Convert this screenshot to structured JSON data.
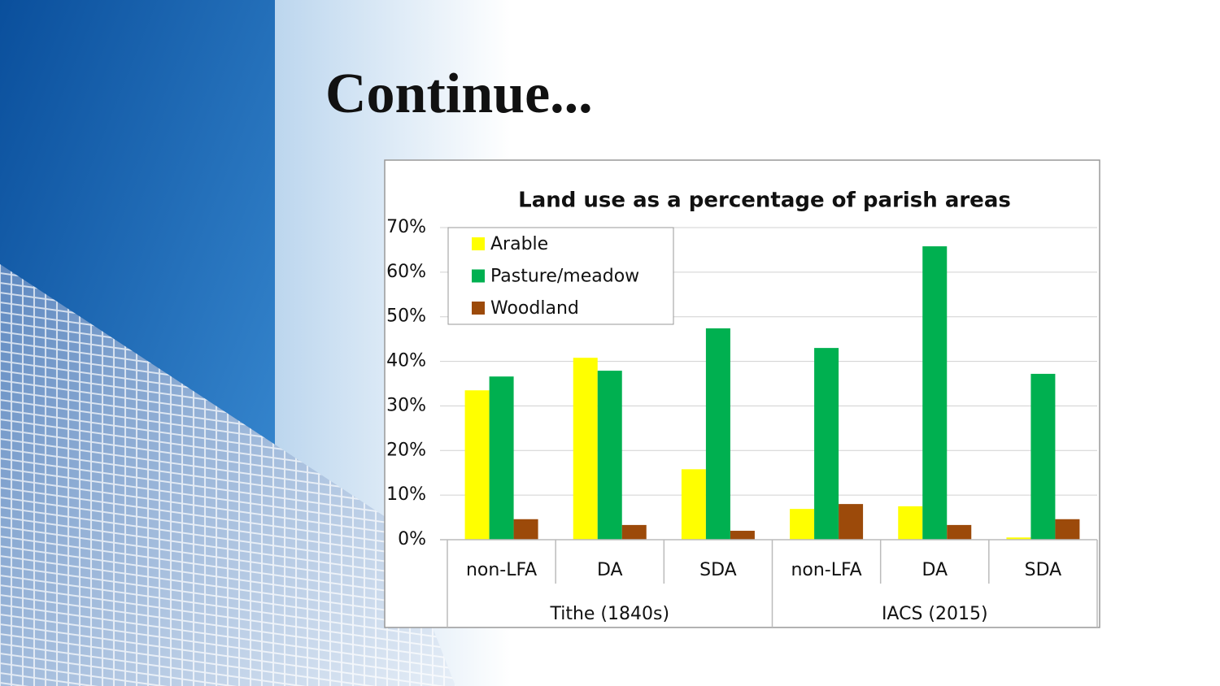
{
  "slide": {
    "title": "Continue..."
  },
  "chart_data": {
    "type": "bar",
    "title": "Land use as a percentage of parish areas",
    "groups": [
      {
        "label": "Tithe (1840s)",
        "categories": [
          "non-LFA",
          "DA",
          "SDA"
        ]
      },
      {
        "label": "IACS (2015)",
        "categories": [
          "non-LFA",
          "DA",
          "SDA"
        ]
      }
    ],
    "series": [
      {
        "name": "Arable",
        "color": "#ffff00",
        "values": [
          33.5,
          40.8,
          15.8,
          6.9,
          7.5,
          0.5
        ]
      },
      {
        "name": "Pasture/meadow",
        "color": "#00b050",
        "values": [
          36.6,
          37.9,
          47.4,
          43.0,
          65.8,
          37.2
        ]
      },
      {
        "name": "Woodland",
        "color": "#9c4a0a",
        "values": [
          4.6,
          3.3,
          2.0,
          8.0,
          3.3,
          4.6
        ]
      }
    ],
    "ylim": [
      0,
      70
    ],
    "yticks": [
      {
        "value": 0,
        "label": "0%"
      },
      {
        "value": 10,
        "label": "10%"
      },
      {
        "value": 20,
        "label": "20%"
      },
      {
        "value": 30,
        "label": "30%"
      },
      {
        "value": 40,
        "label": "40%"
      },
      {
        "value": 50,
        "label": "50%"
      },
      {
        "value": 60,
        "label": "60%"
      },
      {
        "value": 70,
        "label": "70%"
      }
    ],
    "grid": true,
    "legend": "upper-left"
  }
}
